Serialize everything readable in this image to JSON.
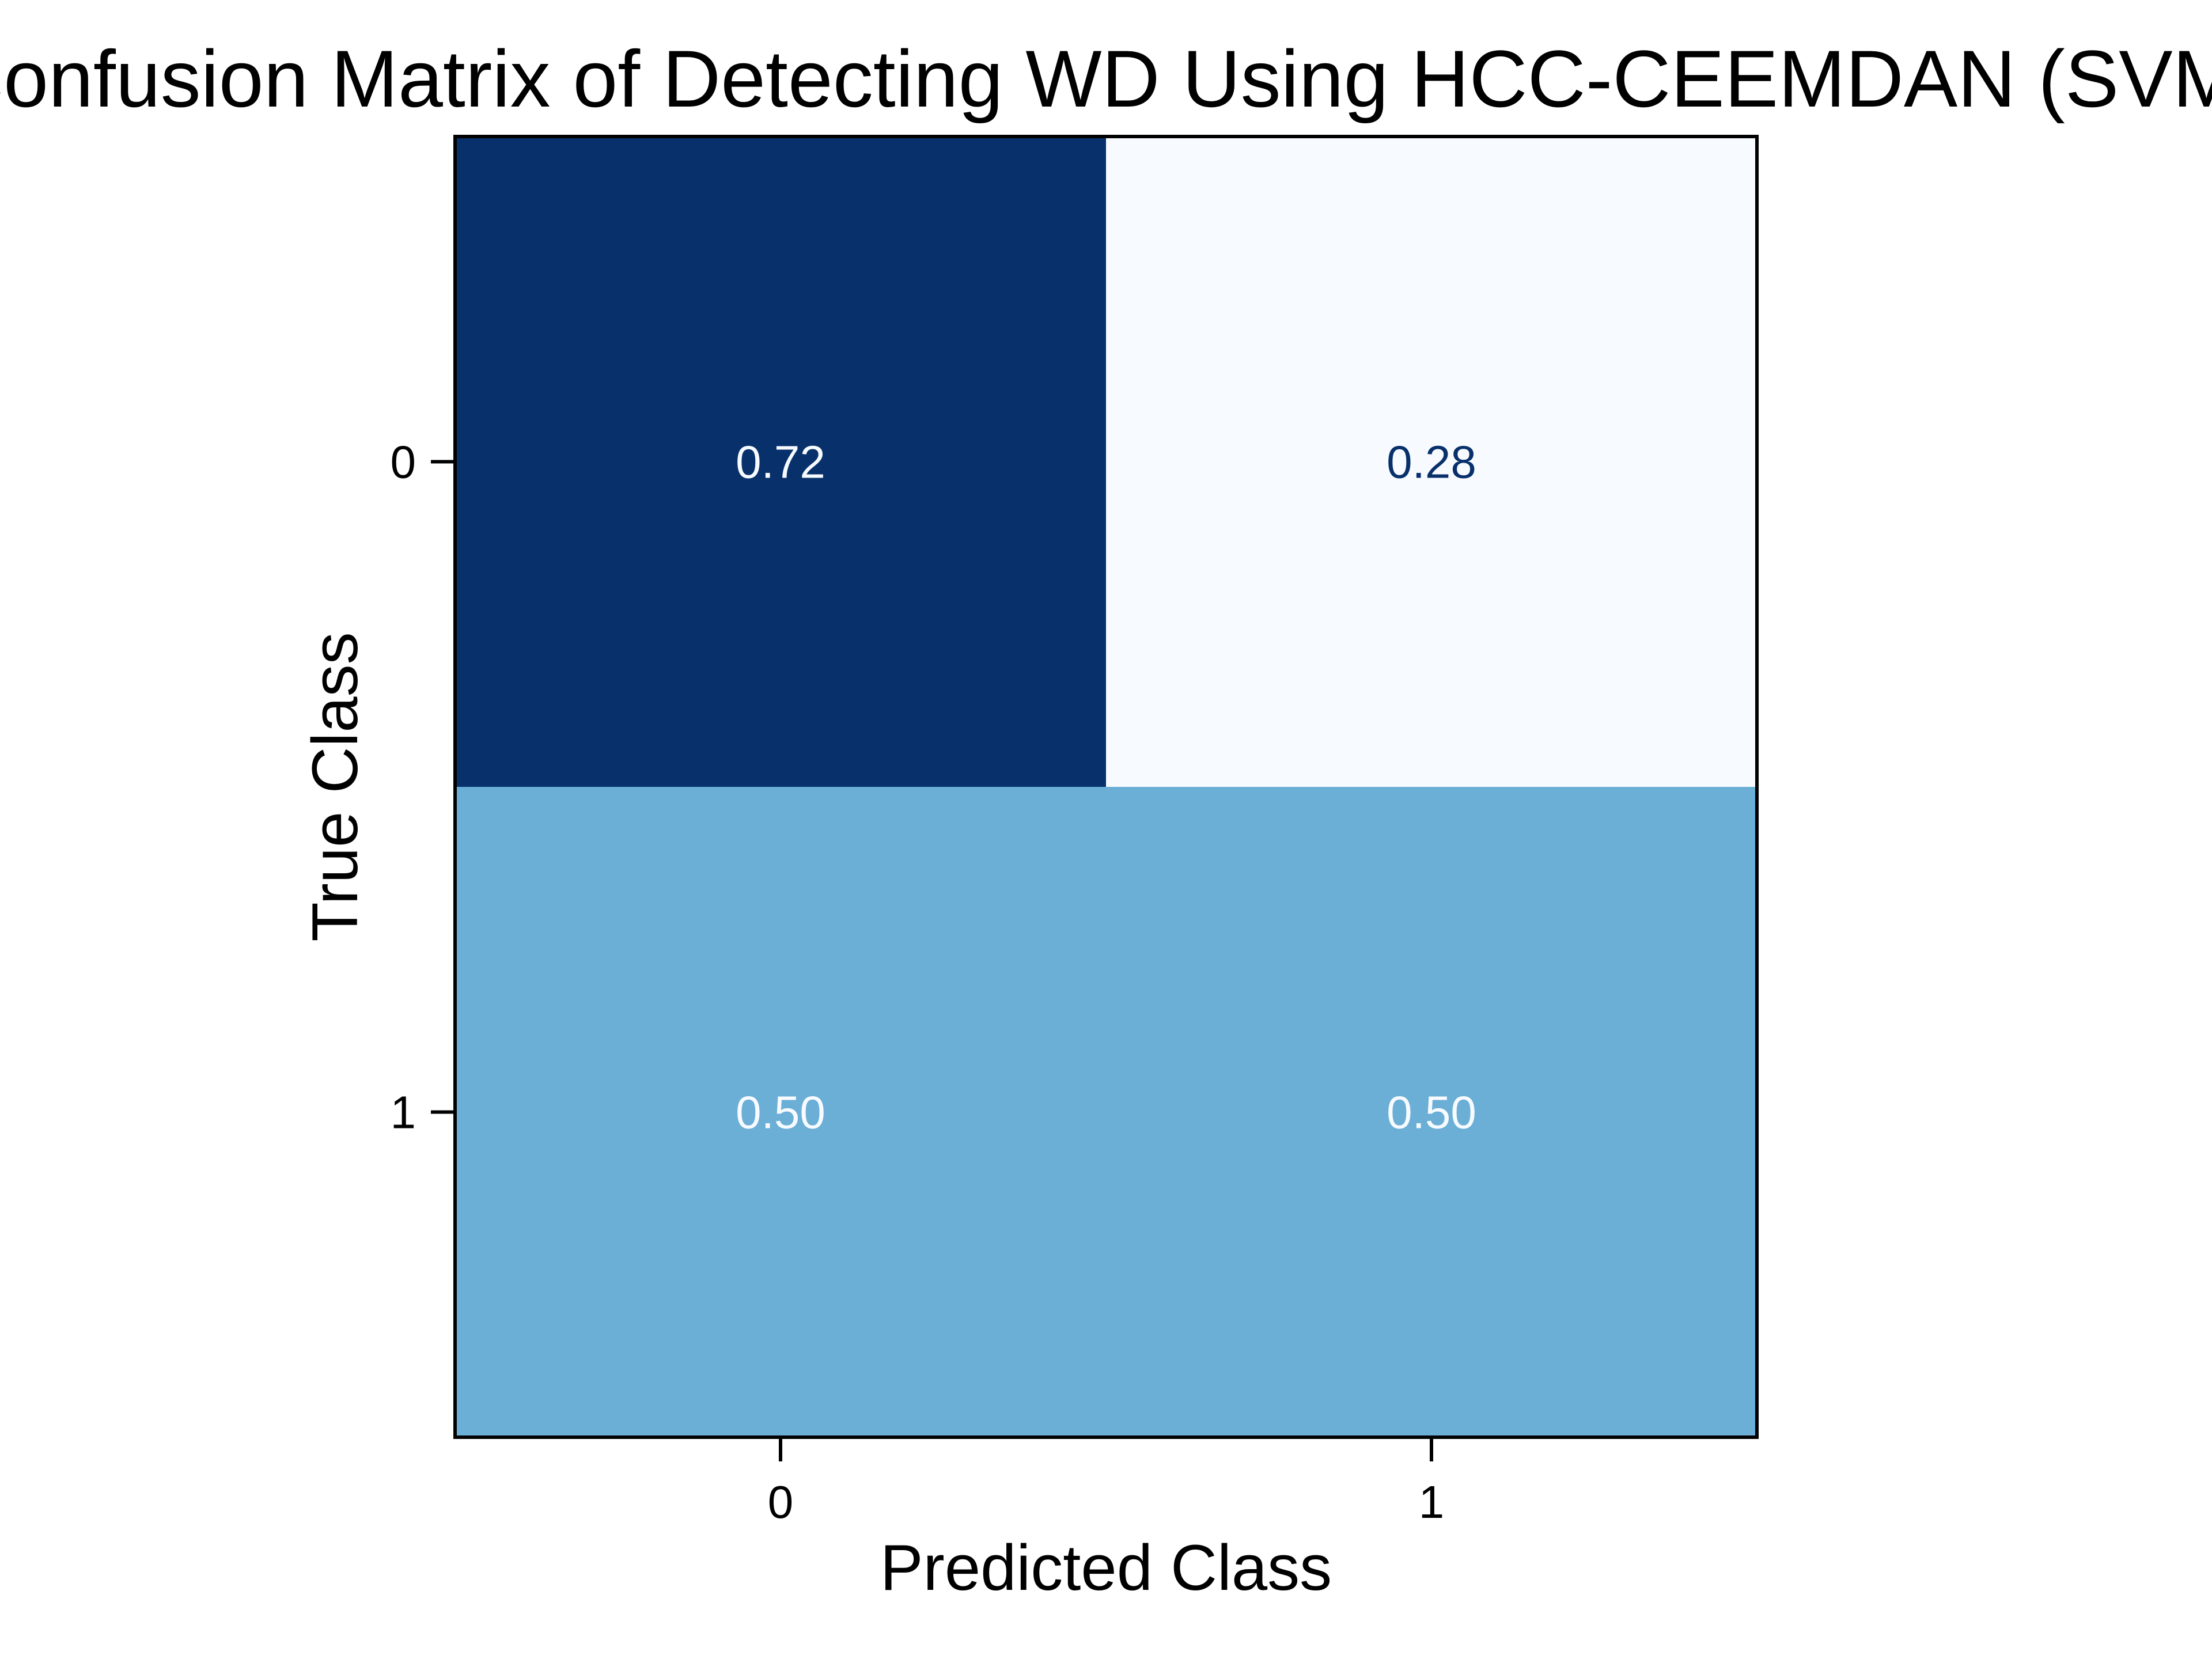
{
  "chart_data": {
    "type": "heatmap",
    "title": "Confusion Matrix of Detecting WD Using HCC-CEEMDAN (SVM)",
    "xlabel": "Predicted Class",
    "ylabel": "True Class",
    "x_categories": [
      "0",
      "1"
    ],
    "y_categories": [
      "0",
      "1"
    ],
    "values": [
      [
        0.72,
        0.28
      ],
      [
        0.5,
        0.5
      ]
    ],
    "value_labels": [
      [
        "0.72",
        "0.28"
      ],
      [
        "0.50",
        "0.50"
      ]
    ],
    "colormap": "Blues",
    "color_range": [
      0.28,
      0.72
    ],
    "colors": {
      "low": "#f7fbff",
      "high": "#08306b",
      "text_dark": "#08306b",
      "text_light": "#f7fbff"
    },
    "grid": false
  }
}
